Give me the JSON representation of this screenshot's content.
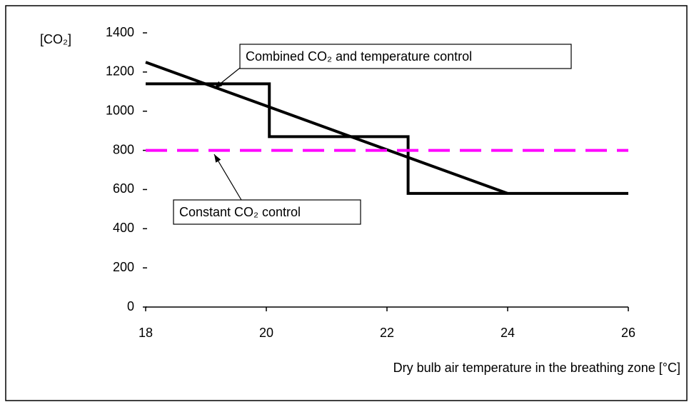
{
  "chart_data": {
    "type": "line",
    "ylabel": "[CO₂]",
    "xlabel": "Dry bulb air temperature in the breathing zone [°C]",
    "xlim": [
      18,
      26
    ],
    "xticks": [
      18,
      20,
      22,
      24,
      26
    ],
    "ylim": [
      0,
      1400
    ],
    "yticks": [
      0,
      200,
      400,
      600,
      800,
      1000,
      1200,
      1400
    ],
    "series": [
      {
        "name": "Combined CO₂ and temperature control",
        "color": "#000000",
        "x": [
          18,
          24
        ],
        "values": [
          1250,
          580
        ]
      },
      {
        "color": "#000000",
        "x": [
          18,
          20.05,
          20.05,
          22.35,
          22.35,
          26
        ],
        "values": [
          1140,
          1140,
          870,
          870,
          580,
          580
        ]
      },
      {
        "name": "Constant CO₂ control",
        "color": "#ff00ff",
        "dashed": true,
        "x": [
          18,
          26
        ],
        "values": [
          800,
          800
        ]
      }
    ]
  }
}
